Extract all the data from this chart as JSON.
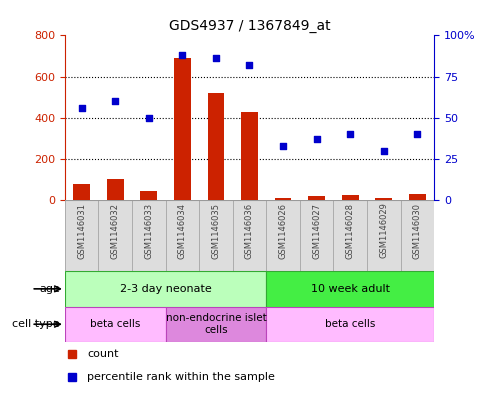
{
  "title": "GDS4937 / 1367849_at",
  "samples": [
    "GSM1146031",
    "GSM1146032",
    "GSM1146033",
    "GSM1146034",
    "GSM1146035",
    "GSM1146036",
    "GSM1146026",
    "GSM1146027",
    "GSM1146028",
    "GSM1146029",
    "GSM1146030"
  ],
  "count_values": [
    80,
    105,
    45,
    690,
    520,
    430,
    12,
    20,
    28,
    12,
    32
  ],
  "percentile_values": [
    56,
    60,
    50,
    88,
    86,
    82,
    33,
    37,
    40,
    30,
    40
  ],
  "bar_color": "#cc2200",
  "scatter_color": "#0000cc",
  "ylim_left": [
    0,
    800
  ],
  "ylim_right": [
    0,
    100
  ],
  "yticks_left": [
    0,
    200,
    400,
    600,
    800
  ],
  "yticks_right": [
    0,
    25,
    50,
    75,
    100
  ],
  "age_groups": [
    {
      "label": "2-3 day neonate",
      "start": 0,
      "end": 6,
      "color": "#bbffbb"
    },
    {
      "label": "10 week adult",
      "start": 6,
      "end": 11,
      "color": "#44ee44"
    }
  ],
  "cell_type_groups": [
    {
      "label": "beta cells",
      "start": 0,
      "end": 3,
      "color": "#ffbbff"
    },
    {
      "label": "non-endocrine islet\ncells",
      "start": 3,
      "end": 6,
      "color": "#dd88dd"
    },
    {
      "label": "beta cells",
      "start": 6,
      "end": 11,
      "color": "#ffbbff"
    }
  ],
  "tick_label_color": "#444444",
  "legend_count_color": "#cc2200",
  "legend_pct_color": "#0000cc",
  "background_color": "#ffffff",
  "grid_color": "#000000",
  "left_tick_color": "#cc2200",
  "right_tick_color": "#0000cc",
  "sample_bg_color": "#dddddd",
  "sample_edge_color": "#999999",
  "age_edge_color": "#33aa33",
  "cell_edge_color": "#bb44bb"
}
